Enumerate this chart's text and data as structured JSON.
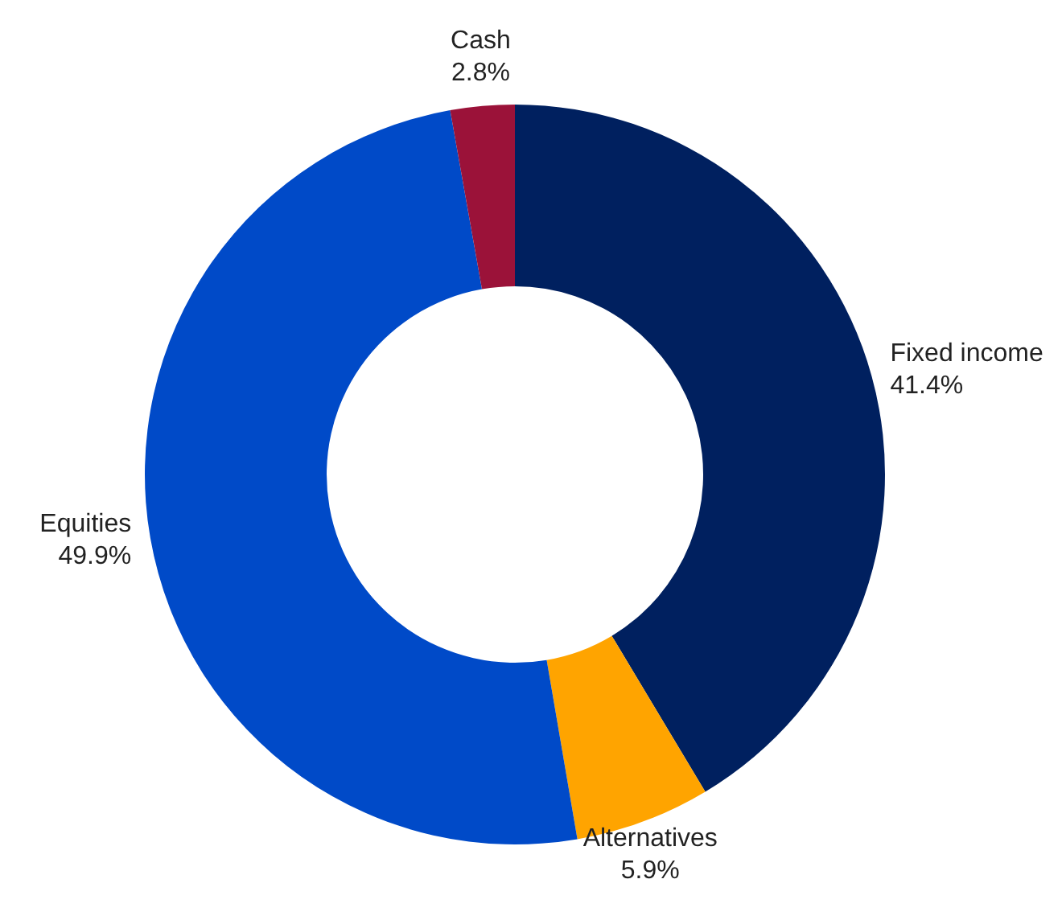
{
  "chart_data": {
    "type": "donut",
    "categories": [
      "Fixed income",
      "Alternatives",
      "Equities",
      "Cash"
    ],
    "values": [
      41.4,
      5.9,
      49.9,
      2.8
    ],
    "value_labels": [
      "41.4%",
      "5.9%",
      "49.9%",
      "2.8%"
    ],
    "colors": [
      "#00205f",
      "#ffa400",
      "#004ac8",
      "#9b1239"
    ]
  }
}
